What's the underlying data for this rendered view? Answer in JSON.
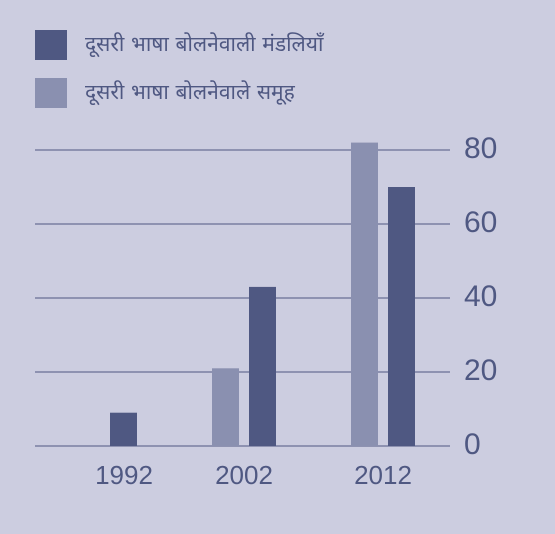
{
  "chart_data": {
    "type": "bar",
    "categories": [
      "1992",
      "2002",
      "2012"
    ],
    "series": [
      {
        "name": "दूसरी भाषा बोलनेवाली मंडलियाँ",
        "color": "#4f5882",
        "values": [
          9,
          43,
          70
        ]
      },
      {
        "name": "दूसरी भाषा बोलनेवाले समूह",
        "color": "#8a90b0",
        "values": [
          0,
          21,
          82
        ]
      }
    ],
    "ylim": [
      0,
      80
    ],
    "yticks": [
      0,
      20,
      40,
      60,
      80
    ],
    "grid": true
  }
}
